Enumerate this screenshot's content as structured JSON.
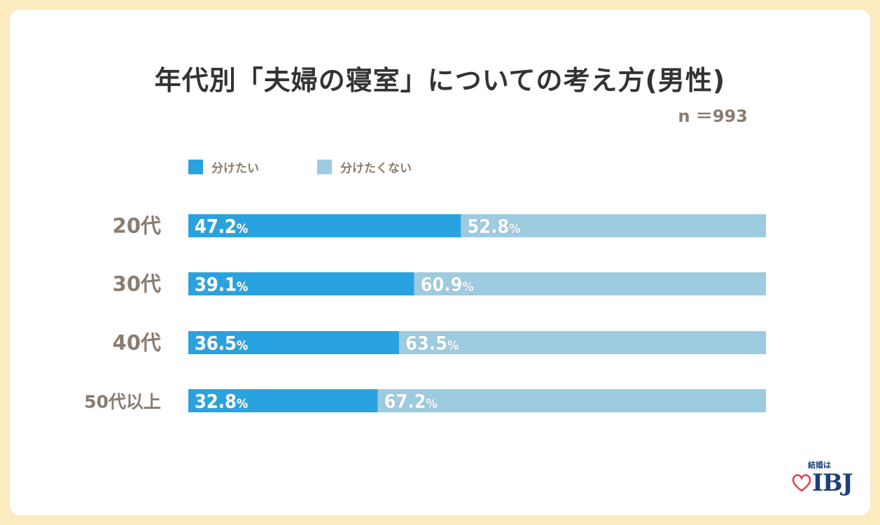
{
  "header": {
    "title": "年代別「夫婦の寝室」についての考え方(男性)",
    "sample_size": "n ＝993"
  },
  "legend": [
    {
      "label": "分けたい",
      "color": "#29a3df"
    },
    {
      "label": "分けたくない",
      "color": "#9dcbe0"
    }
  ],
  "logo": {
    "tagline": "結婚は",
    "brand": "IBJ",
    "heart_color": "#e0404a"
  },
  "chart_data": {
    "type": "bar",
    "stacked": true,
    "orientation": "horizontal",
    "categories": [
      "20代",
      "30代",
      "40代",
      "50代以上"
    ],
    "series": [
      {
        "name": "分けたい",
        "color": "#29a3df",
        "values": [
          47.2,
          39.1,
          36.5,
          32.8
        ]
      },
      {
        "name": "分けたくない",
        "color": "#9dcbe0",
        "values": [
          52.8,
          60.9,
          63.5,
          67.2
        ]
      }
    ],
    "value_unit": "%",
    "xlim": [
      0,
      100
    ]
  }
}
